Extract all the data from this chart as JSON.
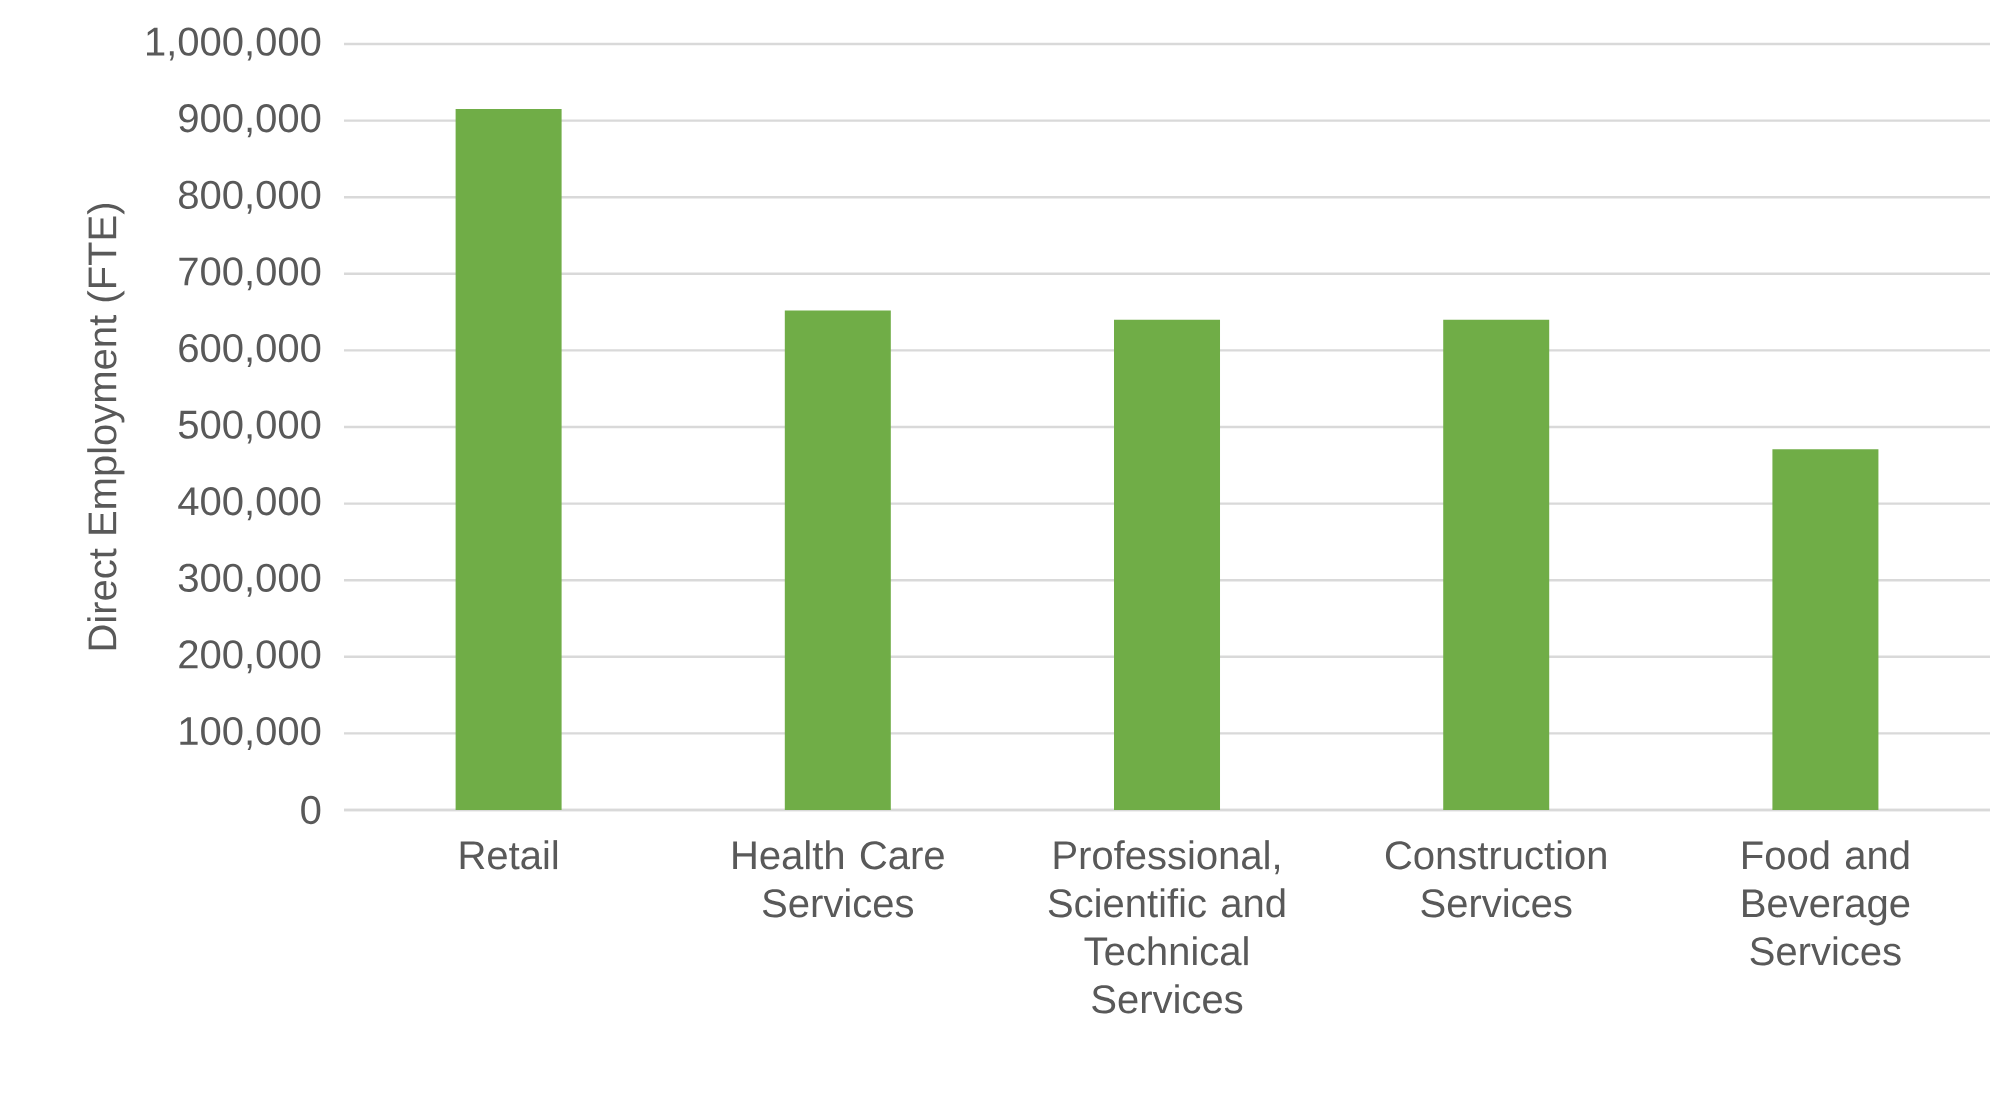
{
  "chart_data": {
    "type": "bar",
    "ylabel": "Direct Employment (FTE)",
    "categories": [
      "Retail",
      "Health Care Services",
      "Professional, Scientific and Technical Services",
      "Construction Services",
      "Food and Beverage Services"
    ],
    "values": [
      915000,
      652000,
      640000,
      640000,
      471000
    ],
    "color": "#70ad47",
    "ylim": [
      0,
      1000000
    ],
    "yticks": [
      {
        "value": 0,
        "label": "0"
      },
      {
        "value": 100000,
        "label": "100,000"
      },
      {
        "value": 200000,
        "label": "200,000"
      },
      {
        "value": 300000,
        "label": "300,000"
      },
      {
        "value": 400000,
        "label": "400,000"
      },
      {
        "value": 500000,
        "label": "500,000"
      },
      {
        "value": 600000,
        "label": "600,000"
      },
      {
        "value": 700000,
        "label": "700,000"
      },
      {
        "value": 800000,
        "label": "800,000"
      },
      {
        "value": 900000,
        "label": "900,000"
      },
      {
        "value": 1000000,
        "label": "1,000,000"
      }
    ],
    "grid": "y"
  }
}
